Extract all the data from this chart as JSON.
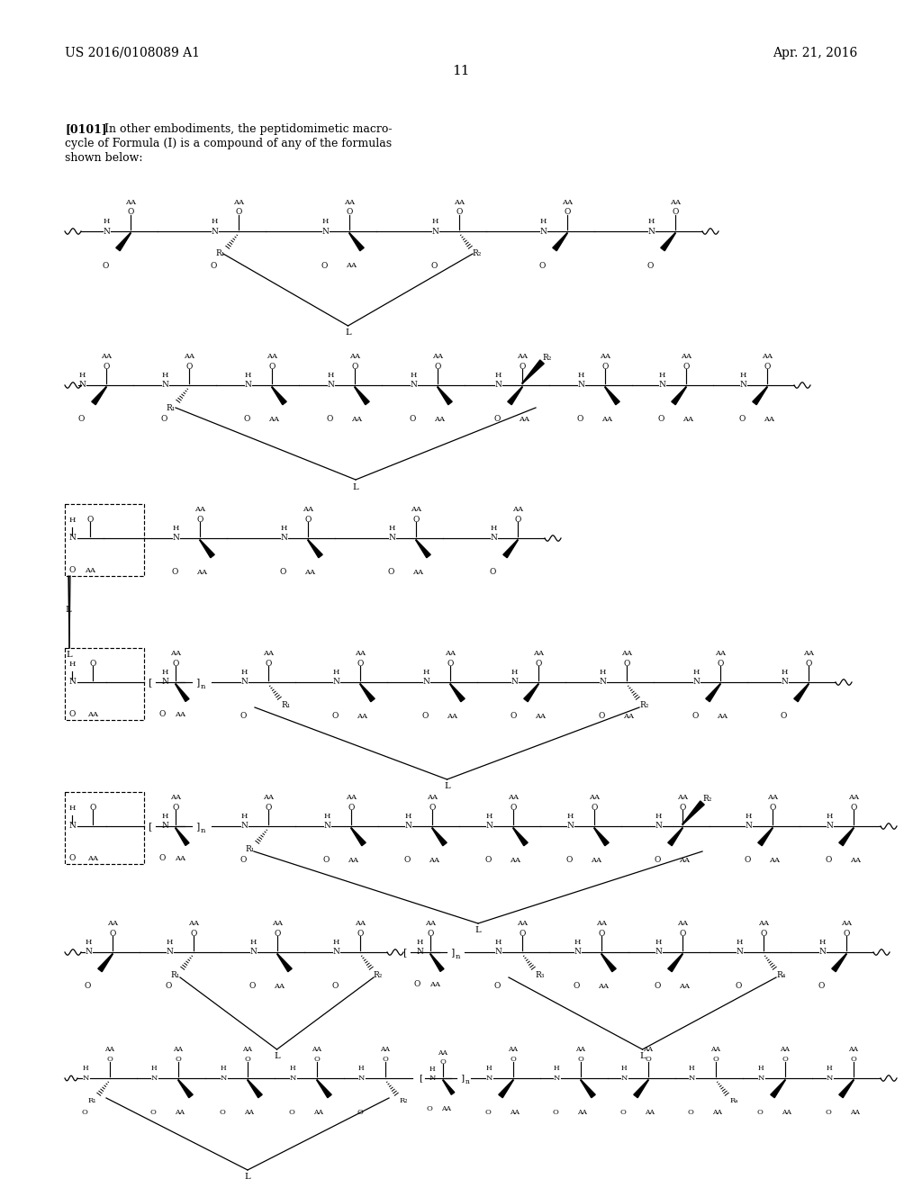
{
  "patent_number": "US 2016/0108089 A1",
  "patent_date": "Apr. 21, 2016",
  "page_number": "11",
  "para_label": "[0101]",
  "para_text1": "In other embodiments, the peptidomimetic macro-",
  "para_text2": "cycle of Formula (I) is a compound of any of the formulas",
  "para_text3": "shown below:",
  "bg_color": "#ffffff",
  "text_color": "#000000"
}
